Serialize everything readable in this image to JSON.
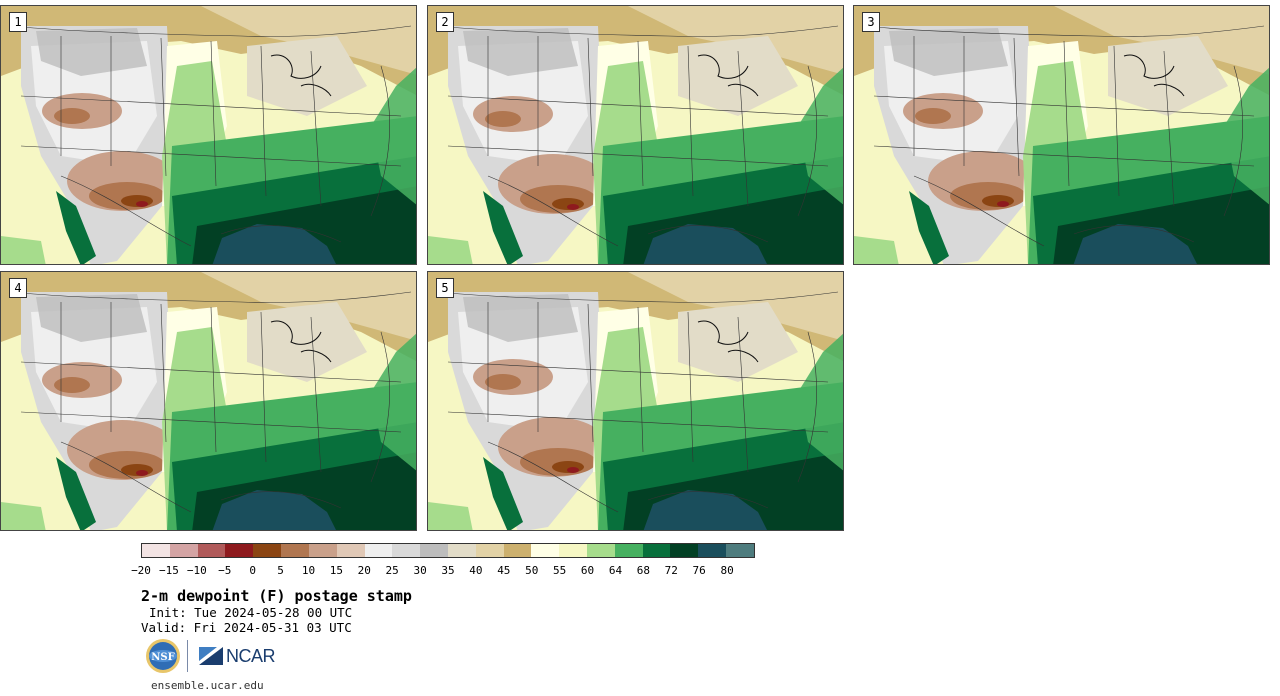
{
  "panels": [
    {
      "label": "1",
      "variant": 0
    },
    {
      "label": "2",
      "variant": 1
    },
    {
      "label": "3",
      "variant": 2
    },
    {
      "label": "4",
      "variant": 3
    },
    {
      "label": "5",
      "variant": 4
    }
  ],
  "colorbar": {
    "colors": [
      "#f3e4e4",
      "#d4a4a4",
      "#b05a5a",
      "#8e1a1e",
      "#8b4513",
      "#b07650",
      "#c9a08a",
      "#e0c8b6",
      "#efefef",
      "#d9d9d9",
      "#bdbdbd",
      "#e2dcc8",
      "#e2d2a6",
      "#ccb06e",
      "#ffffe6",
      "#f6f7c4",
      "#a6dc8c",
      "#46b060",
      "#08703c",
      "#024024",
      "#1a4e5c",
      "#4e7c7e"
    ],
    "ticks": [
      "−20",
      "−15",
      "−10",
      "−5",
      "0",
      "5",
      "10",
      "15",
      "20",
      "25",
      "30",
      "35",
      "40",
      "45",
      "50",
      "55",
      "60",
      "64",
      "68",
      "72",
      "76",
      "80"
    ]
  },
  "text": {
    "title": "2-m dewpoint (F) postage stamp",
    "init": "Init: Tue 2024-05-28 00 UTC",
    "valid": "Valid: Fri 2024-05-31 03 UTC",
    "site": "ensemble.ucar.edu",
    "ncar": "NCAR"
  },
  "logos": [
    "nsf-logo",
    "ncar-logo"
  ]
}
